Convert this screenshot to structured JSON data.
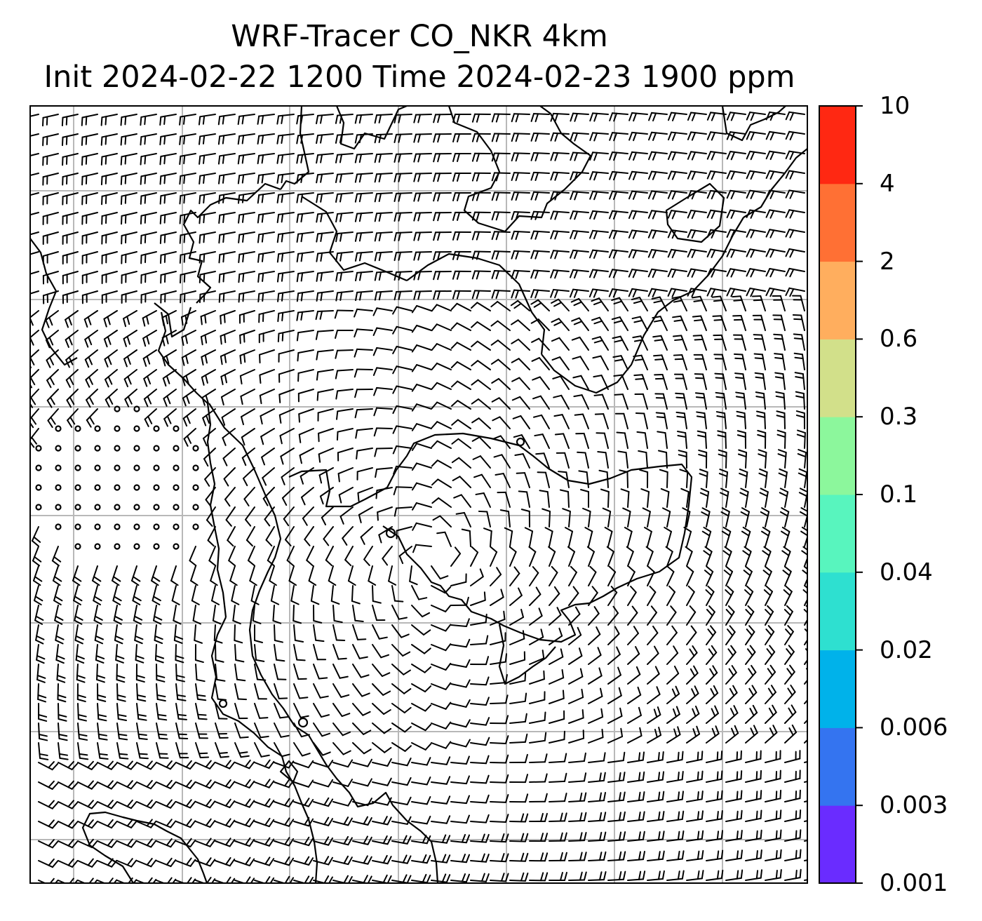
{
  "figure": {
    "title_line1": "WRF-Tracer CO_NKR 4km",
    "title_line2": "Init 2024-02-22 1200 Time 2024-02-23 1900 ppm"
  },
  "colorbar": {
    "levels": [
      "0.001",
      "0.003",
      "0.006",
      "0.02",
      "0.04",
      "0.1",
      "0.3",
      "0.6",
      "2",
      "4",
      "10"
    ],
    "colors": [
      "#6a2cff",
      "#3474f0",
      "#00b2ea",
      "#2ee0d0",
      "#58f5be",
      "#8cf79c",
      "#d2e08a",
      "#ffae5e",
      "#ff7034",
      "#ff2812"
    ]
  },
  "map": {
    "gridline_color": "#b8b8b8",
    "barb_color": "#000000",
    "coastline_color": "#000000",
    "background": "#ffffff",
    "wind_field": "vortex-centered cyclonic barbs; calm circles west of center"
  }
}
